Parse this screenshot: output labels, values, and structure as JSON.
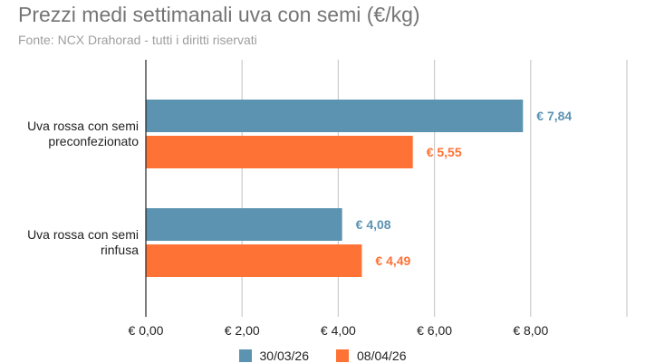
{
  "chart_data": {
    "type": "bar",
    "orientation": "horizontal",
    "title": "Prezzi medi settimanali uva con semi (€/kg)",
    "subtitle": "Fonte: NCX Drahorad - tutti i diritti riservati",
    "categories": [
      "Uva rossa con semi preconfezionato",
      "Uva rossa con semi rinfusa"
    ],
    "category_lines": [
      [
        "Uva rossa con semi",
        "preconfezionato"
      ],
      [
        "Uva rossa con semi",
        "rinfusa"
      ]
    ],
    "series": [
      {
        "name": "30/03/26",
        "values": [
          7.84,
          4.08
        ],
        "labels": [
          "€ 7,84",
          "€ 4,08"
        ],
        "color": "#5b93b1"
      },
      {
        "name": "08/04/26",
        "values": [
          5.55,
          4.49
        ],
        "labels": [
          "€ 5,55",
          "€ 4,49"
        ],
        "color": "#ff7235"
      }
    ],
    "xlim": [
      0,
      10
    ],
    "xticks": [
      {
        "value": 0,
        "label": "€ 0,00"
      },
      {
        "value": 2,
        "label": "€ 2,00"
      },
      {
        "value": 4,
        "label": "€ 4,00"
      },
      {
        "value": 6,
        "label": "€ 6,00"
      },
      {
        "value": 8,
        "label": "€ 8,00"
      },
      {
        "value": 10,
        "label": ""
      }
    ],
    "grid": true,
    "legend_position": "bottom"
  }
}
